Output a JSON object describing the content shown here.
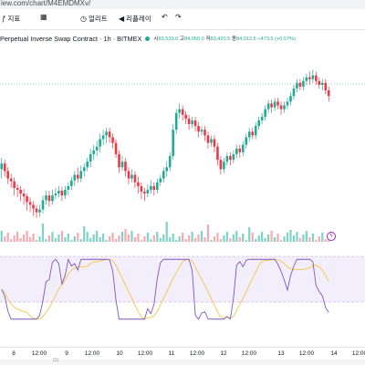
{
  "browser": {
    "url": "iew.com/chart/M4EMDMXv/"
  },
  "toolbar": {
    "items": [
      {
        "label": "지표",
        "icon": "indicators-icon"
      },
      {
        "label": "",
        "icon": "layout-grid-icon"
      },
      {
        "label": "얼리트",
        "icon": "alert-clock-icon"
      },
      {
        "label": "리플레이",
        "icon": "replay-icon"
      },
      {
        "label": "",
        "icon": "undo-icon"
      },
      {
        "label": "",
        "icon": "redo-icon"
      }
    ]
  },
  "legend": {
    "symbol": "Perpetual Inverse Swap Contract · 1h · BITMEX",
    "open_label": "시",
    "open": "83,539.0",
    "high_label": "고",
    "high": "84,050.0",
    "low_label": "저",
    "low": "83,420.5",
    "close_label": "종",
    "close": "84,012.5",
    "change": "+473.5 (+0.57%)",
    "up_color": "#22ab94",
    "down_color": "#f23645"
  },
  "xaxis": {
    "labels": [
      "8",
      "12:00",
      "9",
      "12:00",
      "10",
      "12:00",
      "11",
      "12:00",
      "12",
      "12:00",
      "13",
      "12:00",
      "14",
      "12:00"
    ]
  },
  "chart_data": {
    "type": "candlestick",
    "title": "",
    "series": [
      {
        "values": [
          [
            198,
            204,
            188,
            210
          ],
          [
            204,
            196,
            190,
            208
          ],
          [
            196,
            188,
            182,
            200
          ],
          [
            188,
            185,
            178,
            193
          ],
          [
            185,
            178,
            170,
            189
          ],
          [
            178,
            176,
            168,
            182
          ],
          [
            176,
            172,
            164,
            180
          ],
          [
            172,
            169,
            160,
            177
          ],
          [
            169,
            163,
            154,
            172
          ],
          [
            163,
            160,
            152,
            168
          ],
          [
            160,
            156,
            148,
            164
          ],
          [
            156,
            152,
            146,
            160
          ],
          [
            152,
            155,
            147,
            160
          ],
          [
            155,
            165,
            151,
            170
          ],
          [
            165,
            170,
            160,
            175
          ],
          [
            170,
            164,
            158,
            175
          ],
          [
            164,
            170,
            160,
            176
          ],
          [
            170,
            172,
            166,
            178
          ],
          [
            172,
            175,
            168,
            180
          ],
          [
            175,
            170,
            164,
            179
          ],
          [
            170,
            176,
            166,
            180
          ],
          [
            176,
            180,
            170,
            184
          ],
          [
            180,
            186,
            176,
            190
          ],
          [
            186,
            192,
            180,
            196
          ],
          [
            192,
            188,
            184,
            200
          ],
          [
            188,
            196,
            184,
            202
          ],
          [
            196,
            200,
            190,
            204
          ],
          [
            200,
            206,
            196,
            210
          ],
          [
            206,
            214,
            200,
            220
          ],
          [
            214,
            218,
            208,
            224
          ],
          [
            218,
            222,
            212,
            228
          ],
          [
            222,
            230,
            216,
            236
          ],
          [
            230,
            234,
            224,
            240
          ],
          [
            234,
            238,
            226,
            242
          ],
          [
            238,
            232,
            226,
            242
          ],
          [
            232,
            226,
            220,
            236
          ],
          [
            226,
            214,
            210,
            230
          ],
          [
            214,
            200,
            194,
            218
          ],
          [
            200,
            206,
            196,
            212
          ],
          [
            206,
            196,
            190,
            210
          ],
          [
            196,
            188,
            182,
            200
          ],
          [
            188,
            192,
            184,
            198
          ],
          [
            192,
            184,
            178,
            196
          ],
          [
            184,
            180,
            172,
            190
          ],
          [
            180,
            174,
            166,
            184
          ],
          [
            174,
            172,
            164,
            178
          ],
          [
            172,
            176,
            168,
            182
          ],
          [
            176,
            180,
            172,
            186
          ],
          [
            180,
            176,
            170,
            184
          ],
          [
            176,
            184,
            172,
            188
          ],
          [
            184,
            188,
            180,
            192
          ],
          [
            188,
            196,
            184,
            200
          ],
          [
            196,
            200,
            190,
            206
          ],
          [
            200,
            212,
            196,
            216
          ],
          [
            212,
            240,
            208,
            246
          ],
          [
            240,
            258,
            236,
            262
          ],
          [
            258,
            262,
            252,
            268
          ],
          [
            262,
            256,
            250,
            266
          ],
          [
            256,
            252,
            246,
            260
          ],
          [
            252,
            246,
            240,
            256
          ],
          [
            246,
            250,
            242,
            254
          ],
          [
            250,
            244,
            238,
            254
          ],
          [
            244,
            238,
            232,
            248
          ],
          [
            238,
            240,
            234,
            244
          ],
          [
            240,
            234,
            228,
            244
          ],
          [
            234,
            226,
            220,
            238
          ],
          [
            226,
            230,
            222,
            234
          ],
          [
            230,
            222,
            216,
            234
          ],
          [
            222,
            208,
            202,
            226
          ],
          [
            208,
            198,
            192,
            212
          ],
          [
            198,
            206,
            194,
            210
          ],
          [
            206,
            212,
            202,
            216
          ],
          [
            212,
            208,
            202,
            216
          ],
          [
            208,
            214,
            204,
            218
          ],
          [
            214,
            220,
            210,
            224
          ],
          [
            220,
            216,
            210,
            224
          ],
          [
            216,
            224,
            212,
            228
          ],
          [
            224,
            232,
            220,
            236
          ],
          [
            232,
            238,
            228,
            242
          ],
          [
            238,
            234,
            230,
            242
          ],
          [
            234,
            244,
            230,
            248
          ],
          [
            244,
            250,
            240,
            254
          ],
          [
            250,
            254,
            246,
            258
          ],
          [
            254,
            262,
            250,
            266
          ],
          [
            262,
            268,
            258,
            272
          ],
          [
            268,
            264,
            258,
            272
          ],
          [
            264,
            270,
            260,
            274
          ],
          [
            270,
            266,
            262,
            274
          ],
          [
            266,
            262,
            256,
            270
          ],
          [
            262,
            266,
            258,
            270
          ],
          [
            266,
            270,
            262,
            274
          ],
          [
            270,
            276,
            266,
            280
          ],
          [
            276,
            284,
            272,
            288
          ],
          [
            284,
            290,
            280,
            294
          ],
          [
            290,
            286,
            282,
            294
          ],
          [
            286,
            292,
            282,
            296
          ],
          [
            292,
            296,
            288,
            300
          ],
          [
            296,
            294,
            288,
            302
          ],
          [
            294,
            298,
            290,
            304
          ],
          [
            298,
            292,
            288,
            302
          ],
          [
            292,
            288,
            284,
            296
          ],
          [
            288,
            290,
            282,
            294
          ],
          [
            290,
            282,
            278,
            294
          ],
          [
            282,
            276,
            270,
            286
          ]
        ]
      }
    ],
    "ylim": [
      140,
      320
    ]
  }
}
